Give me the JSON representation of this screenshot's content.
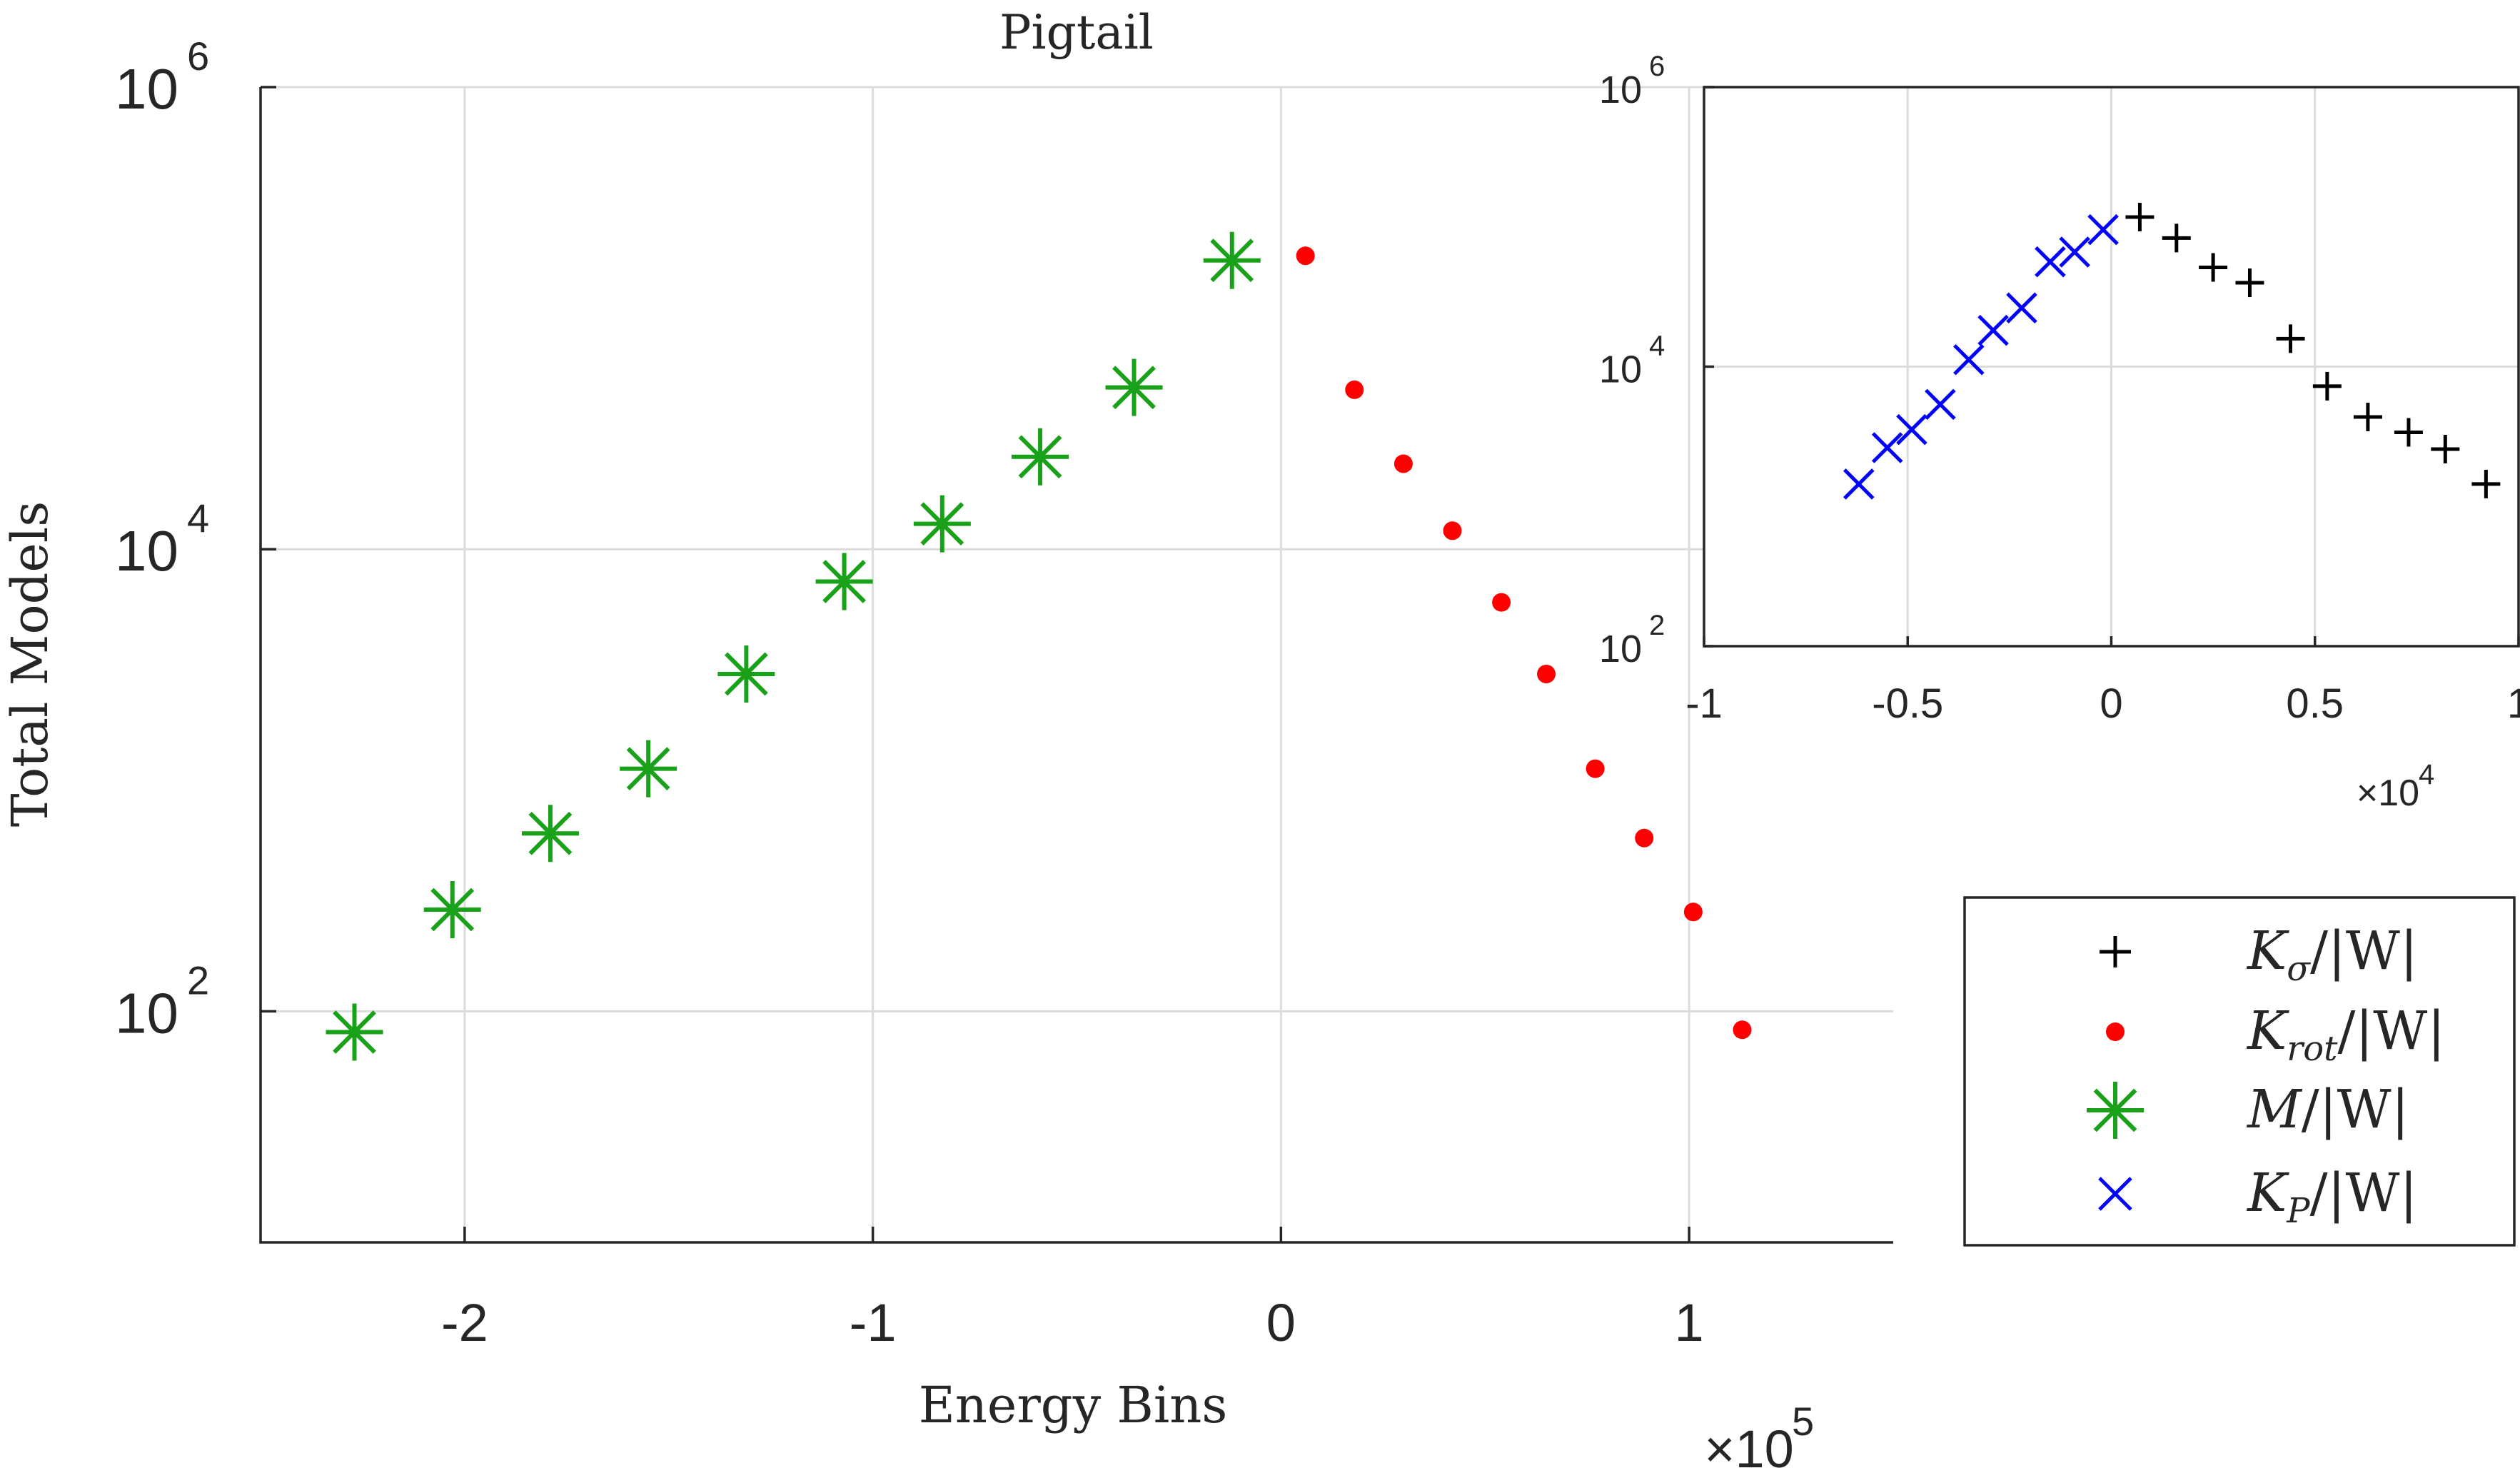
{
  "chart_data": {
    "type": "scatter",
    "title": "Pigtail",
    "xlabel": "Energy Bins",
    "ylabel": "Total Models",
    "x_exponent_label": "×10",
    "x_exponent_power": "5",
    "y_scale": "log",
    "xlim": [
      -2.5,
      1.5
    ],
    "ylim_log10": [
      1,
      6
    ],
    "xticks": [
      {
        "value": -2,
        "label": "-2"
      },
      {
        "value": -1,
        "label": "-1"
      },
      {
        "value": 0,
        "label": "0"
      },
      {
        "value": 1,
        "label": "1"
      }
    ],
    "yticks": [
      {
        "log": 2,
        "base": "10",
        "power": "2"
      },
      {
        "log": 4,
        "base": "10",
        "power": "4"
      },
      {
        "log": 6,
        "base": "10",
        "power": "6"
      }
    ],
    "grid": true,
    "series": [
      {
        "name": "M/|W|",
        "marker": "asterisk",
        "color": "#1aa11a",
        "x": [
          -2.27,
          -2.03,
          -1.79,
          -1.55,
          -1.31,
          -1.07,
          -0.83,
          -0.59,
          -0.36,
          -0.12
        ],
        "log10y": [
          1.91,
          2.44,
          2.77,
          3.05,
          3.46,
          3.86,
          4.11,
          4.4,
          4.7,
          5.25
        ]
      },
      {
        "name": "K_rot/|W|",
        "marker": "dot",
        "color": "#ff0000",
        "x": [
          0.06,
          0.18,
          0.3,
          0.42,
          0.54,
          0.65,
          0.77,
          0.89,
          1.01,
          1.13
        ],
        "log10y": [
          5.27,
          4.69,
          4.37,
          4.08,
          3.77,
          3.46,
          3.05,
          2.75,
          2.43,
          1.92
        ]
      }
    ],
    "inset": {
      "xlim": [
        -1,
        1
      ],
      "ylim_log10": [
        2,
        6
      ],
      "x_exponent_label": "×10",
      "x_exponent_power": "4",
      "xticks": [
        {
          "value": -1,
          "label": "-1"
        },
        {
          "value": -0.5,
          "label": "-0.5"
        },
        {
          "value": 0,
          "label": "0"
        },
        {
          "value": 0.5,
          "label": "0.5"
        },
        {
          "value": 1,
          "label": "1"
        }
      ],
      "yticks": [
        {
          "log": 2,
          "base": "10",
          "power": "2"
        },
        {
          "log": 4,
          "base": "10",
          "power": "4"
        },
        {
          "log": 6,
          "base": "10",
          "power": "6"
        }
      ],
      "series": [
        {
          "name": "K_sigma/|W|",
          "marker": "plus",
          "color": "#000000",
          "x": [
            0.07,
            0.16,
            0.25,
            0.34,
            0.44,
            0.53,
            0.63,
            0.73,
            0.82,
            0.92
          ],
          "log10y": [
            5.07,
            4.92,
            4.71,
            4.6,
            4.2,
            3.86,
            3.64,
            3.53,
            3.41,
            3.16
          ]
        },
        {
          "name": "K_P/|W|",
          "marker": "cross",
          "color": "#0000ff",
          "x": [
            -0.62,
            -0.55,
            -0.49,
            -0.42,
            -0.35,
            -0.29,
            -0.22,
            -0.15,
            -0.09,
            -0.02
          ],
          "log10y": [
            3.16,
            3.42,
            3.55,
            3.73,
            4.05,
            4.26,
            4.42,
            4.75,
            4.82,
            4.98
          ]
        }
      ]
    },
    "legend": {
      "placement": "right, below inset",
      "entries": [
        {
          "marker": "plus",
          "color": "#000000",
          "math": "K",
          "sub": "σ",
          "rest": "/|W|"
        },
        {
          "marker": "dot",
          "color": "#ff0000",
          "math": "K",
          "sub": "rot",
          "rest": "/|W|"
        },
        {
          "marker": "asterisk",
          "color": "#1aa11a",
          "math": "M",
          "sub": "",
          "rest": "/|W|"
        },
        {
          "marker": "cross",
          "color": "#0000ff",
          "math": "K",
          "sub": "P",
          "rest": "/|W|"
        }
      ]
    }
  }
}
